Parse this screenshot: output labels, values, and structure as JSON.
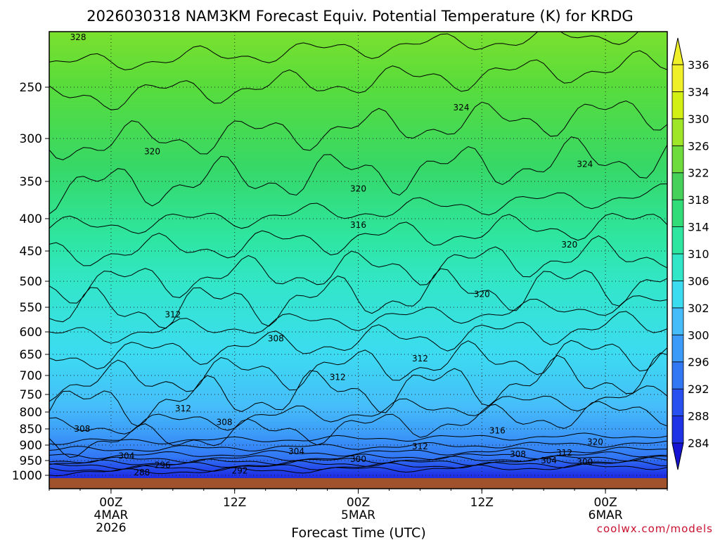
{
  "chart_data": {
    "type": "heatmap",
    "title": "2026030318 NAM3KM Forecast Equiv. Potential Temperature (K) for KRDG",
    "xlabel": "Forecast Time (UTC)",
    "ylabel": "",
    "credit": "coolwx.com/models",
    "y_axis": {
      "scale": "pressure (inverted, log-like)",
      "ticks": [
        250,
        300,
        350,
        400,
        450,
        500,
        550,
        600,
        650,
        700,
        750,
        800,
        850,
        900,
        950,
        1000
      ],
      "range": [
        1000,
        200
      ]
    },
    "x_axis": {
      "range_hours": [
        -6,
        54
      ],
      "ticks": [
        {
          "hour": 0,
          "lines": [
            "00Z",
            "4MAR",
            "2026"
          ]
        },
        {
          "hour": 12,
          "lines": [
            "12Z"
          ]
        },
        {
          "hour": 24,
          "lines": [
            "00Z",
            "5MAR"
          ]
        },
        {
          "hour": 36,
          "lines": [
            "12Z"
          ]
        },
        {
          "hour": 48,
          "lines": [
            "00Z",
            "6MAR"
          ]
        }
      ]
    },
    "colorbar": {
      "levels": [
        284,
        288,
        292,
        296,
        300,
        302,
        306,
        310,
        314,
        318,
        322,
        326,
        330,
        334,
        336
      ],
      "colors": [
        "#1414d2",
        "#1e32e6",
        "#2850f0",
        "#3278f5",
        "#3c9bf8",
        "#46bdfa",
        "#3cdcf0",
        "#32e6c8",
        "#2ee6a0",
        "#32dc78",
        "#46d25a",
        "#6edc3c",
        "#a0e628",
        "#d2f014",
        "#f0f028"
      ],
      "units": "K"
    },
    "contour_labels": [
      {
        "text": "328",
        "hour": -3.2,
        "p": 205
      },
      {
        "text": "320",
        "hour": 4,
        "p": 315
      },
      {
        "text": "324",
        "hour": 34,
        "p": 270
      },
      {
        "text": "324",
        "hour": 46,
        "p": 330
      },
      {
        "text": "320",
        "hour": 24,
        "p": 360
      },
      {
        "text": "316",
        "hour": 24,
        "p": 410
      },
      {
        "text": "320",
        "hour": 44.5,
        "p": 440
      },
      {
        "text": "320",
        "hour": 36,
        "p": 525
      },
      {
        "text": "312",
        "hour": 6,
        "p": 565
      },
      {
        "text": "308",
        "hour": 16,
        "p": 615
      },
      {
        "text": "312",
        "hour": 30,
        "p": 660
      },
      {
        "text": "312",
        "hour": 22,
        "p": 705
      },
      {
        "text": "312",
        "hour": 7,
        "p": 790
      },
      {
        "text": "308",
        "hour": 11,
        "p": 830
      },
      {
        "text": "308",
        "hour": -2.8,
        "p": 850
      },
      {
        "text": "316",
        "hour": 37.5,
        "p": 855
      },
      {
        "text": "320",
        "hour": 47,
        "p": 890
      },
      {
        "text": "312",
        "hour": 30,
        "p": 905
      },
      {
        "text": "304",
        "hour": 18,
        "p": 920
      },
      {
        "text": "312",
        "hour": 44,
        "p": 925
      },
      {
        "text": "308",
        "hour": 39.5,
        "p": 930
      },
      {
        "text": "304",
        "hour": 1.5,
        "p": 935
      },
      {
        "text": "300",
        "hour": 24,
        "p": 945
      },
      {
        "text": "304",
        "hour": 42.5,
        "p": 950
      },
      {
        "text": "300",
        "hour": 46,
        "p": 955
      },
      {
        "text": "296",
        "hour": 5,
        "p": 965
      },
      {
        "text": "292",
        "hour": 12.5,
        "p": 985
      },
      {
        "text": "288",
        "hour": 3,
        "p": 990
      }
    ]
  }
}
